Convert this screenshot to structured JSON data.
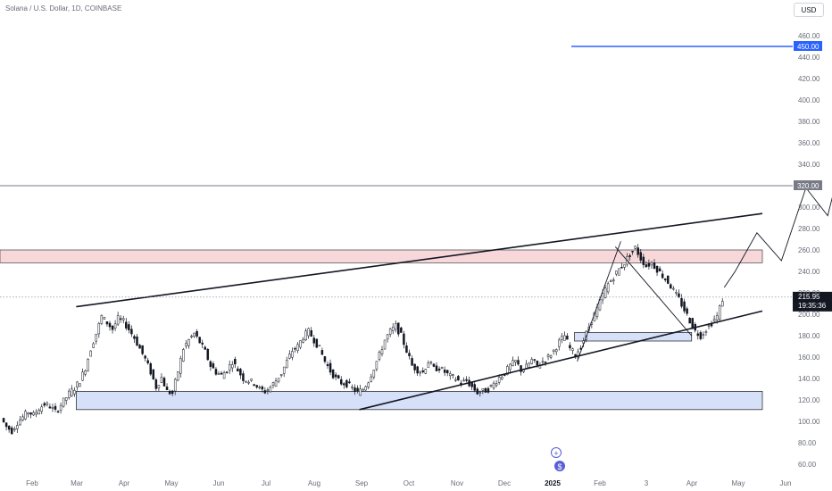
{
  "header": {
    "title": "Solana / U.S. Dollar, 1D, COINBASE",
    "currency": "USD"
  },
  "price_labels": {
    "current": "215.95",
    "countdown": "19:35:36"
  },
  "colors": {
    "candle": "#131722",
    "resistance_zone_fill": "#f8d7da",
    "support_zone_fill": "#d6e0f8",
    "target_line": "#2962ff",
    "level_line": "#787b86",
    "trendline": "#131722",
    "projection": "#131722"
  },
  "chart_data": {
    "type": "line",
    "title": "Solana / U.S. Dollar, 1D, COINBASE",
    "xlabel": "",
    "ylabel": "",
    "x_ticks": [
      "Feb",
      "Mar",
      "Apr",
      "May",
      "Jun",
      "Jul",
      "Aug",
      "Sep",
      "Oct",
      "Nov",
      "Dec",
      "2025",
      "Feb",
      "3",
      "Apr",
      "May",
      "Jun"
    ],
    "y_ticks": [
      60,
      80,
      100,
      120,
      140,
      160,
      180,
      200,
      220,
      240,
      260,
      280,
      300,
      320,
      340,
      360,
      380,
      400,
      420,
      440,
      460
    ],
    "ylim": [
      52,
      468
    ],
    "grid": false,
    "series": [
      {
        "values": [
          [
            1,
            103
          ],
          [
            3,
            95
          ],
          [
            5,
            91
          ],
          [
            7,
            99
          ],
          [
            9,
            104
          ],
          [
            11,
            109
          ],
          [
            13,
            106
          ],
          [
            15,
            112
          ],
          [
            17,
            116
          ],
          [
            19,
            114
          ],
          [
            21,
            109
          ],
          [
            22,
            112
          ],
          [
            24,
            119
          ],
          [
            26,
            126
          ],
          [
            28,
            131
          ],
          [
            30,
            138
          ],
          [
            32,
            150
          ],
          [
            34,
            168
          ],
          [
            36,
            182
          ],
          [
            38,
            198
          ],
          [
            40,
            192
          ],
          [
            42,
            186
          ],
          [
            44,
            196
          ],
          [
            46,
            193
          ],
          [
            48,
            186
          ],
          [
            50,
            178
          ],
          [
            52,
            168
          ],
          [
            54,
            158
          ],
          [
            56,
            146
          ],
          [
            58,
            132
          ],
          [
            60,
            141
          ],
          [
            62,
            128
          ],
          [
            64,
            126
          ],
          [
            66,
            147
          ],
          [
            68,
            168
          ],
          [
            70,
            176
          ],
          [
            72,
            182
          ],
          [
            74,
            174
          ],
          [
            76,
            165
          ],
          [
            78,
            152
          ],
          [
            80,
            146
          ],
          [
            82,
            143
          ],
          [
            84,
            148
          ],
          [
            86,
            156
          ],
          [
            88,
            148
          ],
          [
            90,
            140
          ],
          [
            92,
            138
          ],
          [
            94,
            136
          ],
          [
            96,
            130
          ],
          [
            98,
            128
          ],
          [
            100,
            132
          ],
          [
            102,
            138
          ],
          [
            104,
            145
          ],
          [
            106,
            156
          ],
          [
            108,
            166
          ],
          [
            110,
            170
          ],
          [
            112,
            179
          ],
          [
            114,
            184
          ],
          [
            116,
            176
          ],
          [
            118,
            168
          ],
          [
            120,
            156
          ],
          [
            122,
            147
          ],
          [
            124,
            140
          ],
          [
            126,
            136
          ],
          [
            128,
            135
          ],
          [
            130,
            131
          ],
          [
            132,
            127
          ],
          [
            134,
            130
          ],
          [
            136,
            138
          ],
          [
            138,
            150
          ],
          [
            140,
            162
          ],
          [
            142,
            176
          ],
          [
            144,
            184
          ],
          [
            146,
            189
          ],
          [
            148,
            180
          ],
          [
            150,
            166
          ],
          [
            152,
            152
          ],
          [
            154,
            148
          ],
          [
            156,
            146
          ],
          [
            158,
            156
          ],
          [
            160,
            149
          ],
          [
            162,
            150
          ],
          [
            164,
            146
          ],
          [
            166,
            142
          ],
          [
            168,
            140
          ],
          [
            170,
            136
          ],
          [
            172,
            138
          ],
          [
            174,
            132
          ],
          [
            176,
            127
          ],
          [
            178,
            128
          ],
          [
            180,
            130
          ],
          [
            182,
            135
          ],
          [
            184,
            141
          ],
          [
            186,
            145
          ],
          [
            188,
            152
          ],
          [
            190,
            156
          ],
          [
            192,
            148
          ],
          [
            194,
            151
          ],
          [
            196,
            157
          ],
          [
            198,
            152
          ],
          [
            200,
            156
          ],
          [
            202,
            160
          ],
          [
            204,
            166
          ],
          [
            206,
            174
          ],
          [
            208,
            180
          ],
          [
            210,
            168
          ],
          [
            212,
            162
          ],
          [
            214,
            170
          ],
          [
            216,
            182
          ],
          [
            218,
            195
          ],
          [
            220,
            205
          ],
          [
            222,
            218
          ],
          [
            224,
            228
          ],
          [
            226,
            235
          ],
          [
            228,
            242
          ],
          [
            230,
            248
          ],
          [
            232,
            256
          ],
          [
            234,
            262
          ],
          [
            236,
            252
          ],
          [
            238,
            245
          ],
          [
            240,
            248
          ],
          [
            242,
            242
          ],
          [
            244,
            236
          ],
          [
            246,
            230
          ],
          [
            248,
            222
          ],
          [
            250,
            214
          ],
          [
            252,
            204
          ],
          [
            254,
            194
          ],
          [
            256,
            184
          ],
          [
            258,
            180
          ],
          [
            260,
            186
          ],
          [
            262,
            192
          ],
          [
            264,
            198
          ],
          [
            266,
            214
          ]
        ]
      }
    ],
    "levels": [
      320,
      450
    ],
    "zones": [
      {
        "y": [
          248,
          260
        ],
        "x": [
          0,
          280
        ]
      },
      {
        "y": [
          175,
          183
        ],
        "x": [
          211,
          254
        ]
      },
      {
        "y": [
          111,
          128
        ],
        "x": [
          28,
          280
        ]
      }
    ],
    "trendlines": [
      {
        "from": [
          28,
          207
        ],
        "to": [
          280,
          294
        ]
      },
      {
        "from": [
          132,
          111
        ],
        "to": [
          280,
          203
        ]
      },
      {
        "from": [
          226,
          263
        ],
        "to": [
          254,
          180
        ]
      },
      {
        "from": [
          212,
          156
        ],
        "to": [
          228,
          268
        ]
      }
    ],
    "projection": [
      [
        266,
        225
      ],
      [
        270,
        240
      ],
      [
        278,
        276
      ],
      [
        287,
        250
      ],
      [
        296,
        318
      ],
      [
        304,
        292
      ],
      [
        320,
        453
      ]
    ]
  }
}
